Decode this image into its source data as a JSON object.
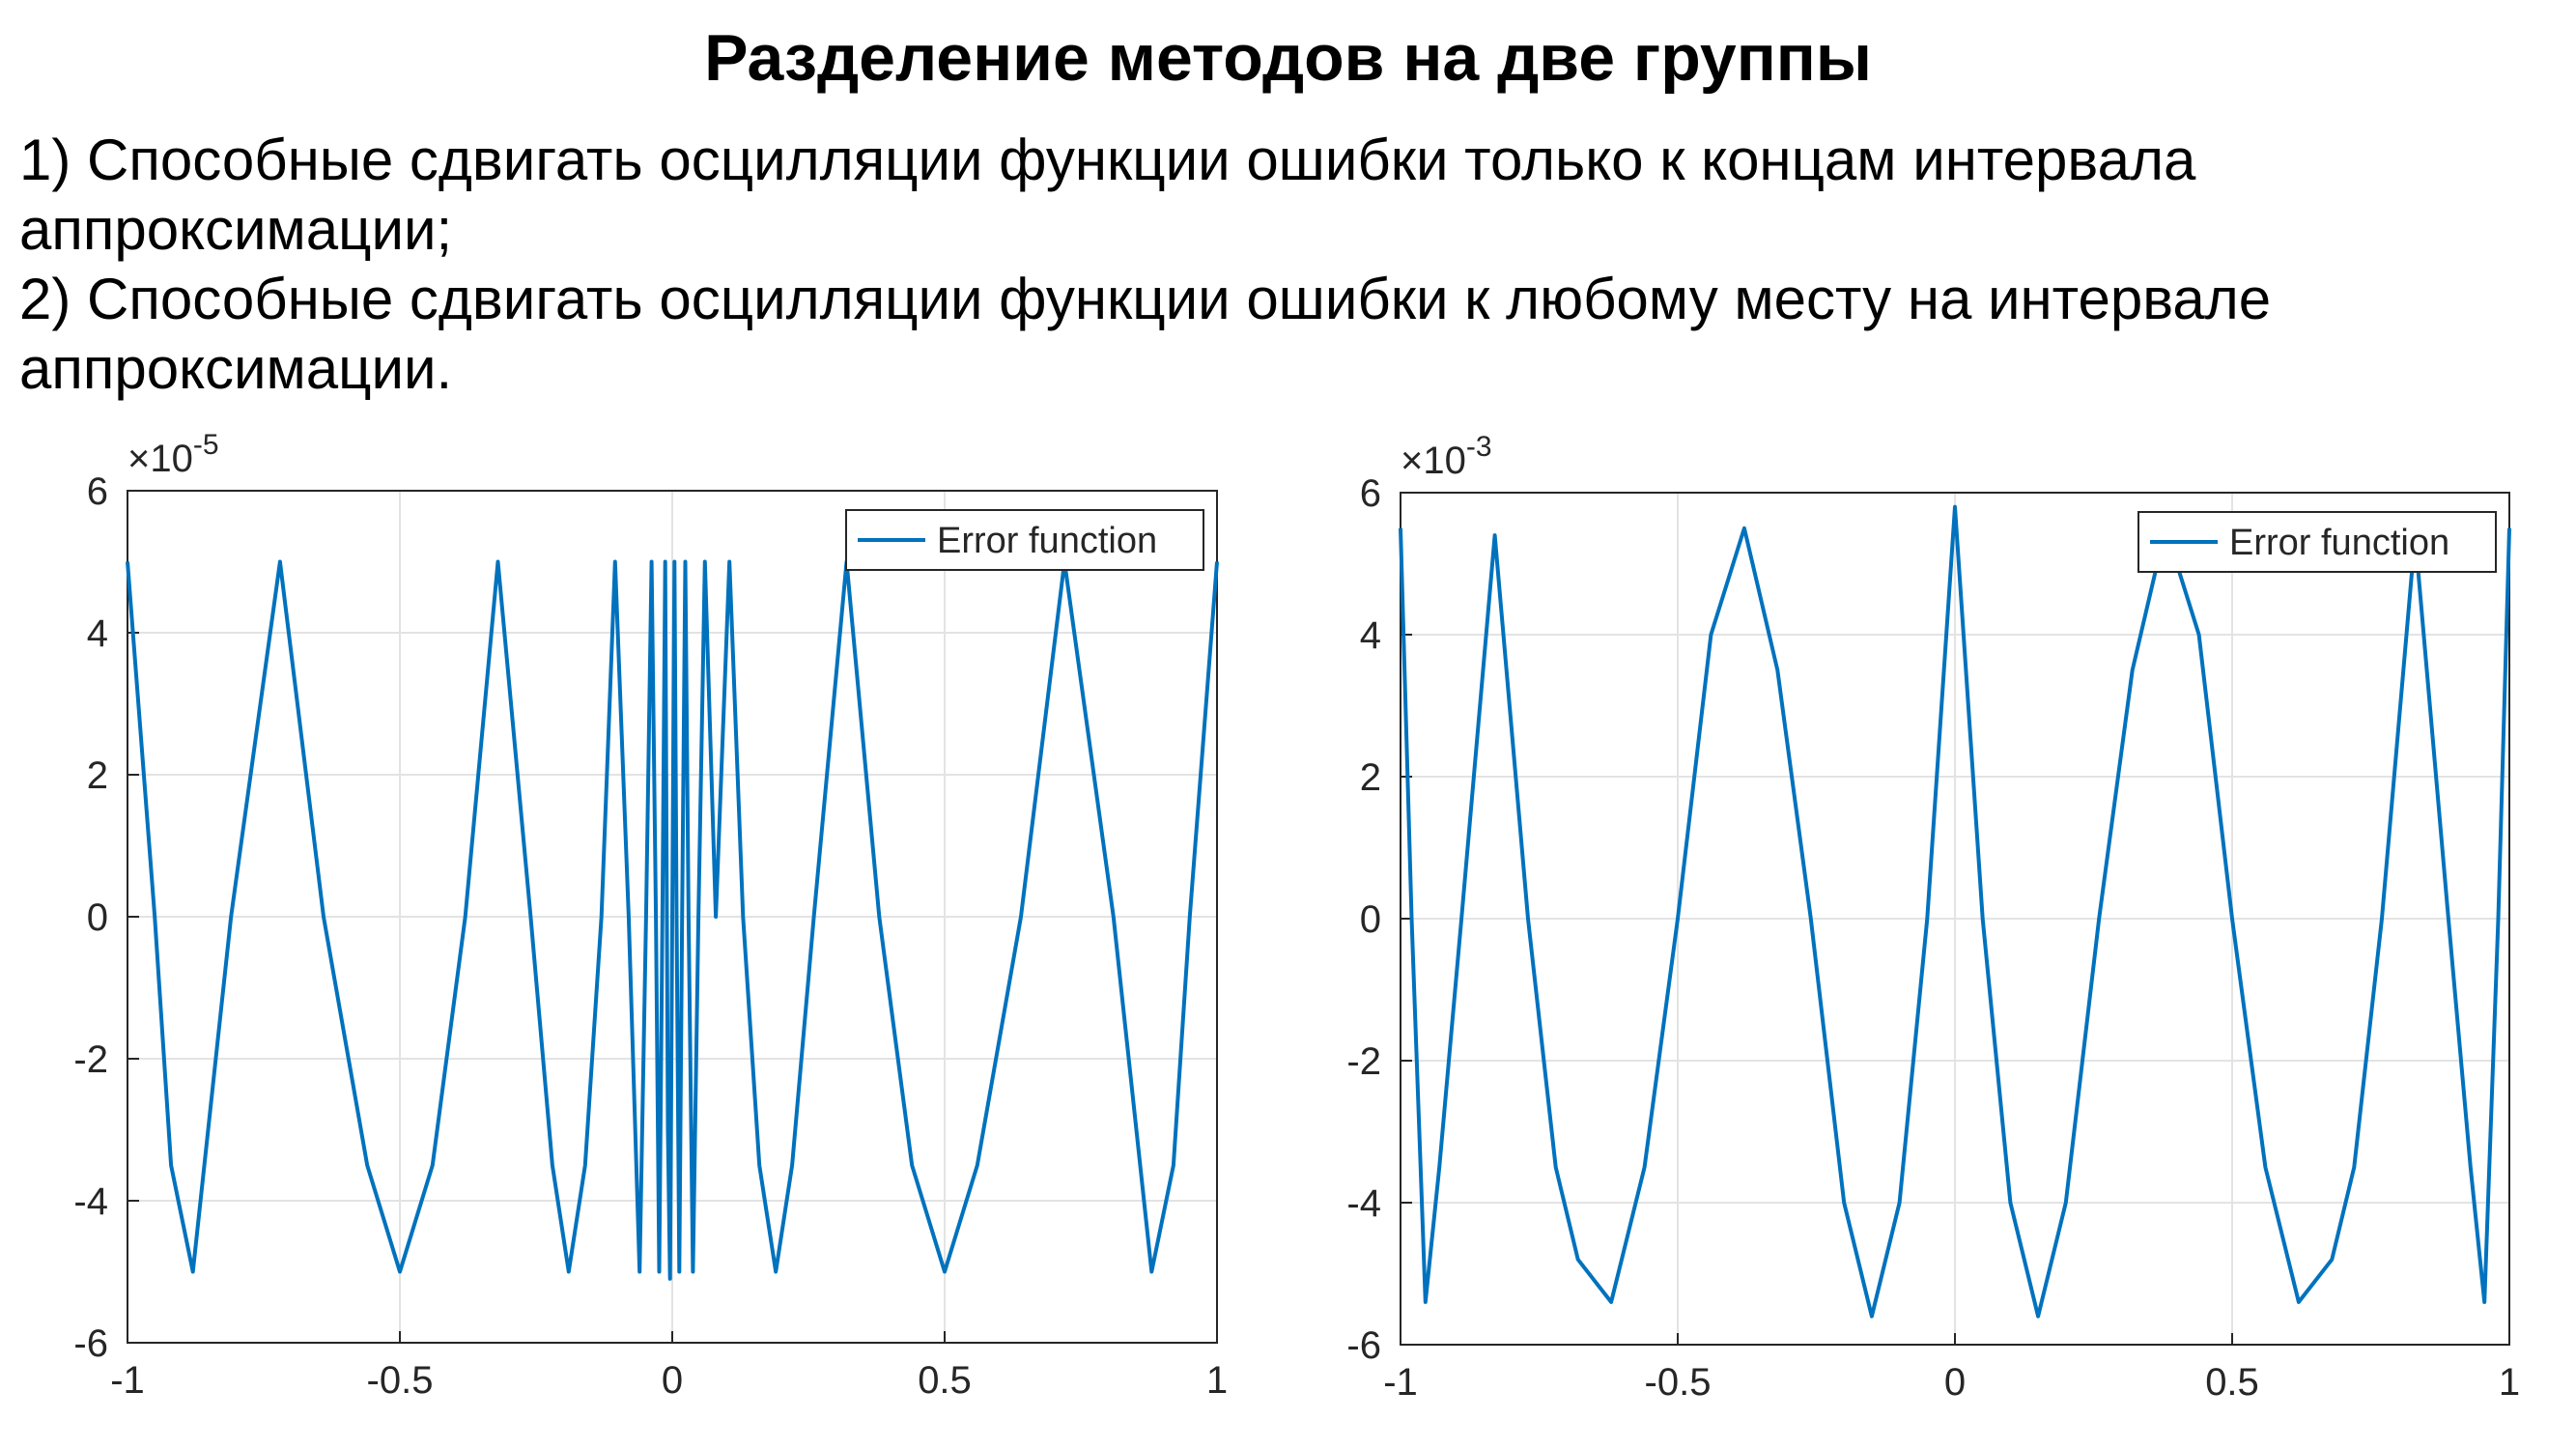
{
  "slide": {
    "title": "Разделение методов на две группы",
    "lines": [
      "1) Способные сдвигать осцилляции функции ошибки только к концам интервала",
      "аппроксимации;",
      "2) Способные сдвигать осцилляции функции ошибки к любому месту на интервале",
      "аппроксимации."
    ]
  },
  "colors": {
    "series": "#0072BD",
    "grid": "#e3e3e3",
    "axes": "#262626",
    "text": "#262626"
  },
  "chart_data": [
    {
      "type": "line",
      "title": "",
      "xlabel": "",
      "ylabel": "",
      "exponent_label": "×10",
      "exponent": "-5",
      "xlim": [
        -1,
        1
      ],
      "ylim": [
        -6,
        6
      ],
      "xticks": [
        -1,
        -0.5,
        0,
        0.5,
        1
      ],
      "xtick_labels": [
        "-1",
        "-0.5",
        "0",
        "0.5",
        "1"
      ],
      "yticks": [
        -6,
        -4,
        -2,
        0,
        2,
        4,
        6
      ],
      "ytick_labels": [
        "-6",
        "-4",
        "-2",
        "0",
        "2",
        "4",
        "6"
      ],
      "grid": true,
      "legend": {
        "position": "top-right",
        "entries": [
          "Error function"
        ]
      },
      "series": [
        {
          "name": "Error function",
          "x": [
            -1,
            -0.95,
            -0.92,
            -0.88,
            -0.81,
            -0.72,
            -0.64,
            -0.56,
            -0.5,
            -0.44,
            -0.38,
            -0.32,
            -0.26,
            -0.22,
            -0.19,
            -0.16,
            -0.13,
            -0.105,
            -0.08,
            -0.06,
            -0.048,
            -0.038,
            -0.03,
            -0.024,
            -0.018,
            -0.013,
            -0.008,
            -0.004,
            0,
            0.004,
            0.008,
            0.013,
            0.018,
            0.024,
            0.03,
            0.038,
            0.048,
            0.06,
            0.08,
            0.105,
            0.13,
            0.16,
            0.19,
            0.22,
            0.26,
            0.32,
            0.38,
            0.44,
            0.5,
            0.56,
            0.64,
            0.72,
            0.81,
            0.88,
            0.92,
            0.95,
            1
          ],
          "y": [
            5,
            0,
            -3.5,
            -5,
            0,
            5,
            0,
            -3.5,
            -5,
            -3.5,
            0,
            5,
            0,
            -3.5,
            -5,
            -3.5,
            0,
            5,
            0,
            -5,
            0,
            5,
            0,
            -5,
            0,
            5,
            -3,
            -5.1,
            0,
            5,
            0,
            -5,
            0,
            5,
            0,
            -5,
            0,
            5,
            0,
            5,
            0,
            -3.5,
            -5,
            -3.5,
            0,
            5,
            0,
            -3.5,
            -5,
            -3.5,
            0,
            5,
            0,
            -5,
            -3.5,
            0,
            5
          ]
        }
      ]
    },
    {
      "type": "line",
      "title": "",
      "xlabel": "",
      "ylabel": "",
      "exponent_label": "×10",
      "exponent": "-3",
      "xlim": [
        -1,
        1
      ],
      "ylim": [
        -6,
        6
      ],
      "xticks": [
        -1,
        -0.5,
        0,
        0.5,
        1
      ],
      "xtick_labels": [
        "-1",
        "-0.5",
        "0",
        "0.5",
        "1"
      ],
      "yticks": [
        -6,
        -4,
        -2,
        0,
        2,
        4,
        6
      ],
      "ytick_labels": [
        "-6",
        "-4",
        "-2",
        "0",
        "2",
        "4",
        "6"
      ],
      "grid": true,
      "legend": {
        "position": "top-right",
        "entries": [
          "Error function"
        ]
      },
      "series": [
        {
          "name": "Error function",
          "x": [
            -1,
            -0.98,
            -0.955,
            -0.93,
            -0.89,
            -0.83,
            -0.77,
            -0.72,
            -0.68,
            -0.62,
            -0.56,
            -0.5,
            -0.44,
            -0.38,
            -0.32,
            -0.26,
            -0.2,
            -0.15,
            -0.1,
            -0.05,
            0,
            0.05,
            0.1,
            0.15,
            0.2,
            0.26,
            0.32,
            0.38,
            0.44,
            0.5,
            0.56,
            0.62,
            0.68,
            0.72,
            0.77,
            0.83,
            0.89,
            0.93,
            0.955,
            0.98,
            1
          ],
          "y": [
            5.5,
            0,
            -5.4,
            -3.5,
            0,
            5.4,
            0,
            -3.5,
            -4.8,
            -5.4,
            -3.5,
            0,
            4,
            5.5,
            3.5,
            0,
            -4,
            -5.6,
            -4,
            0,
            5.8,
            0,
            -4,
            -5.6,
            -4,
            0,
            3.5,
            5.5,
            4,
            0,
            -3.5,
            -5.4,
            -4.8,
            -3.5,
            0,
            5.4,
            0,
            -3.5,
            -5.4,
            0,
            5.5
          ]
        }
      ]
    }
  ]
}
